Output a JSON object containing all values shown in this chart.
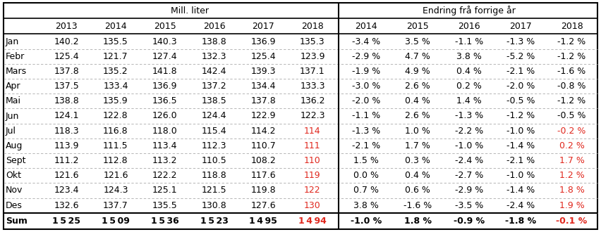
{
  "months": [
    "Jan",
    "Febr",
    "Mars",
    "Apr",
    "Mai",
    "Jun",
    "Jul",
    "Aug",
    "Sept",
    "Okt",
    "Nov",
    "Des",
    "Sum"
  ],
  "mill_liter": {
    "2013": [
      "140.2",
      "125.4",
      "137.8",
      "137.5",
      "138.8",
      "124.1",
      "118.3",
      "113.9",
      "111.2",
      "121.6",
      "123.4",
      "132.6",
      "1 5 25"
    ],
    "2014": [
      "135.5",
      "121.7",
      "135.2",
      "133.4",
      "135.9",
      "122.8",
      "116.8",
      "111.5",
      "112.8",
      "121.6",
      "124.3",
      "137.7",
      "1 5 09"
    ],
    "2015": [
      "140.3",
      "127.4",
      "141.8",
      "136.9",
      "136.5",
      "126.0",
      "118.0",
      "113.4",
      "113.2",
      "122.2",
      "125.1",
      "135.5",
      "1 5 36"
    ],
    "2016": [
      "138.8",
      "132.3",
      "142.4",
      "137.2",
      "138.5",
      "124.4",
      "115.4",
      "112.3",
      "110.5",
      "118.8",
      "121.5",
      "130.8",
      "1 5 23"
    ],
    "2017": [
      "136.9",
      "125.4",
      "139.3",
      "134.4",
      "137.8",
      "122.9",
      "114.2",
      "110.7",
      "108.2",
      "117.6",
      "119.8",
      "127.6",
      "1 4 95"
    ],
    "2018": [
      "135.3",
      "123.9",
      "137.1",
      "133.3",
      "136.2",
      "122.3",
      "114",
      "111",
      "110",
      "119",
      "122",
      "130",
      "1 4 94"
    ]
  },
  "endring": {
    "2014": [
      "-3.4 %",
      "-2.9 %",
      "-1.9 %",
      "-3.0 %",
      "-2.0 %",
      "-1.1 %",
      "-1.3 %",
      "-2.1 %",
      "1.5 %",
      "0.0 %",
      "0.7 %",
      "3.8 %",
      "-1.0 %"
    ],
    "2015": [
      "3.5 %",
      "4.7 %",
      "4.9 %",
      "2.6 %",
      "0.4 %",
      "2.6 %",
      "1.0 %",
      "1.7 %",
      "0.3 %",
      "0.4 %",
      "0.6 %",
      "-1.6 %",
      "1.8 %"
    ],
    "2016": [
      "-1.1 %",
      "3.8 %",
      "0.4 %",
      "0.2 %",
      "1.4 %",
      "-1.3 %",
      "-2.2 %",
      "-1.0 %",
      "-2.4 %",
      "-2.7 %",
      "-2.9 %",
      "-3.5 %",
      "-0.9 %"
    ],
    "2017": [
      "-1.3 %",
      "-5.2 %",
      "-2.1 %",
      "-2.0 %",
      "-0.5 %",
      "-1.2 %",
      "-1.0 %",
      "-1.4 %",
      "-2.1 %",
      "-1.0 %",
      "-1.4 %",
      "-2.4 %",
      "-1.8 %"
    ],
    "2018": [
      "-1.2 %",
      "-1.2 %",
      "-1.6 %",
      "-0.8 %",
      "-1.2 %",
      "-0.5 %",
      "-0.2 %",
      "0.2 %",
      "1.7 %",
      "1.2 %",
      "1.8 %",
      "1.9 %",
      "-0.1 %"
    ]
  },
  "mill_liter_years": [
    "2013",
    "2014",
    "2015",
    "2016",
    "2017",
    "2018"
  ],
  "endring_years": [
    "2014",
    "2015",
    "2016",
    "2017",
    "2018"
  ],
  "header1": "Mill. liter",
  "header2": "Endring frå forrige år",
  "bg_color": "#ffffff",
  "text_color": "#000000",
  "red_color": "#e0281e",
  "gray_line": "#aaaaaa"
}
